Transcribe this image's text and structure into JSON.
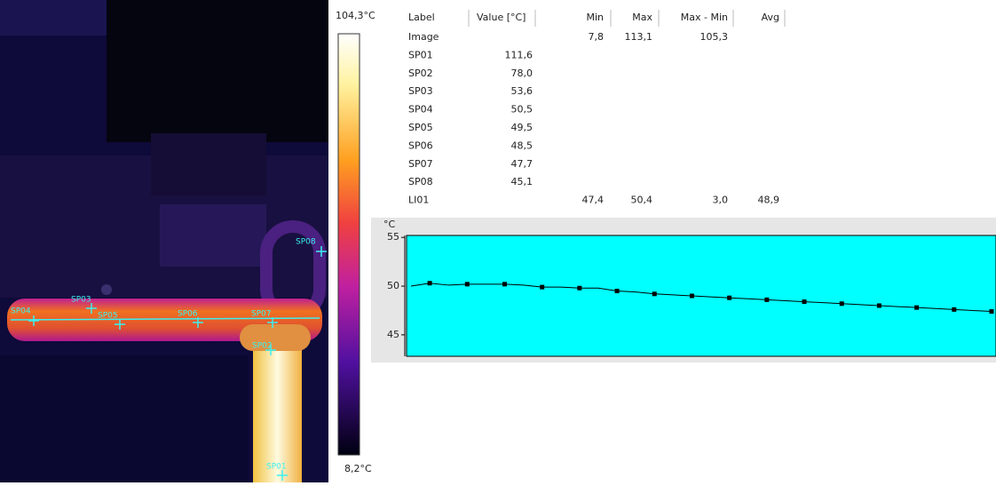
{
  "scale": {
    "max_label": "104,3°C",
    "min_label": "8,2°C"
  },
  "spots": [
    {
      "label": "SP01"
    },
    {
      "label": "SP02"
    },
    {
      "label": "SP03"
    },
    {
      "label": "SP04"
    },
    {
      "label": "SP05"
    },
    {
      "label": "SP06"
    },
    {
      "label": "SP07"
    },
    {
      "label": "SP08"
    }
  ],
  "table": {
    "headers": {
      "label": "Label",
      "value": "Value [°C]",
      "min": "Min",
      "max": "Max",
      "max_min": "Max - Min",
      "avg": "Avg"
    },
    "rows": [
      {
        "label": "Image",
        "min": "7,8",
        "max": "113,1",
        "max_min": "105,3"
      },
      {
        "label": "SP01",
        "value": "111,6"
      },
      {
        "label": "SP02",
        "value": "78,0"
      },
      {
        "label": "SP03",
        "value": "53,6"
      },
      {
        "label": "SP04",
        "value": "50,5"
      },
      {
        "label": "SP05",
        "value": "49,5"
      },
      {
        "label": "SP06",
        "value": "48,5"
      },
      {
        "label": "SP07",
        "value": "47,7"
      },
      {
        "label": "SP08",
        "value": "45,1"
      },
      {
        "label": "LI01",
        "min": "47,4",
        "max": "50,4",
        "max_min": "3,0",
        "avg": "48,9"
      }
    ]
  },
  "chart_data": {
    "type": "line",
    "y_label": "°C",
    "ylim": [
      42.8,
      55.2
    ],
    "yticks": [
      45,
      50,
      55
    ],
    "color": "#000000",
    "background": "#00ffff",
    "values": [
      50.0,
      50.3,
      50.1,
      50.2,
      50.2,
      50.2,
      50.1,
      49.9,
      49.9,
      49.8,
      49.8,
      49.5,
      49.4,
      49.2,
      49.1,
      49.0,
      48.9,
      48.8,
      48.7,
      48.6,
      48.5,
      48.4,
      48.3,
      48.2,
      48.1,
      48.0,
      47.9,
      47.8,
      47.7,
      47.6,
      47.5,
      47.4
    ]
  }
}
